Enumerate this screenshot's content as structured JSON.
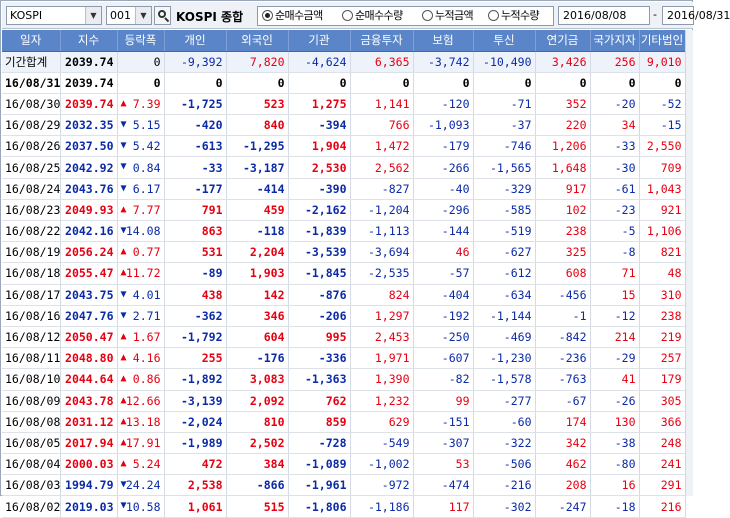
{
  "toolbar": {
    "market_select": "KOSPI",
    "code_select": "001",
    "stock_name": "KOSPI 종합",
    "radios": [
      {
        "label": "순매수금액",
        "checked": true
      },
      {
        "label": "순매수수량",
        "checked": false
      },
      {
        "label": "누적금액",
        "checked": false
      },
      {
        "label": "누적수량",
        "checked": false
      }
    ],
    "date_from": "2016/08/08",
    "date_sep": "-",
    "date_to": "2016/08/31"
  },
  "colors": {
    "up": "#e60012",
    "down": "#0a2aa8",
    "header": "#5a86c9"
  },
  "icons": {
    "search": "search-icon",
    "dropdown": "chevron-down-icon",
    "up": "triangle-up-icon",
    "down": "triangle-down-icon"
  },
  "columns": [
    "일자",
    "지수",
    "등락폭",
    "개인",
    "외국인",
    "기관",
    "금융투자",
    "보험",
    "투신",
    "연기금",
    "국가지자",
    "기타법인"
  ],
  "rows": [
    {
      "date": "기간합계",
      "index": "2039.74",
      "dir": "",
      "chg": "0",
      "vals": [
        "-9,392",
        "7,820",
        "-4,624",
        "6,365",
        "-3,742",
        "-10,490",
        "3,426",
        "256",
        "9,010"
      ]
    },
    {
      "date": "16/08/31",
      "index": "2039.74",
      "dir": "",
      "chg": "0",
      "vals": [
        "0",
        "0",
        "0",
        "0",
        "0",
        "0",
        "0",
        "0",
        "0"
      ]
    },
    {
      "date": "16/08/30",
      "index": "2039.74",
      "dir": "up",
      "chg": "7.39",
      "vals": [
        "-1,725",
        "523",
        "1,275",
        "1,141",
        "-120",
        "-71",
        "352",
        "-20",
        "-52"
      ]
    },
    {
      "date": "16/08/29",
      "index": "2032.35",
      "dir": "down",
      "chg": "5.15",
      "vals": [
        "-420",
        "840",
        "-394",
        "766",
        "-1,093",
        "-37",
        "220",
        "34",
        "-15"
      ]
    },
    {
      "date": "16/08/26",
      "index": "2037.50",
      "dir": "down",
      "chg": "5.42",
      "vals": [
        "-613",
        "-1,295",
        "1,904",
        "1,472",
        "-179",
        "-746",
        "1,206",
        "-33",
        "2,550"
      ]
    },
    {
      "date": "16/08/25",
      "index": "2042.92",
      "dir": "down",
      "chg": "0.84",
      "vals": [
        "-33",
        "-3,187",
        "2,530",
        "2,562",
        "-266",
        "-1,565",
        "1,648",
        "-30",
        "709"
      ]
    },
    {
      "date": "16/08/24",
      "index": "2043.76",
      "dir": "down",
      "chg": "6.17",
      "vals": [
        "-177",
        "-414",
        "-390",
        "-827",
        "-40",
        "-329",
        "917",
        "-61",
        "1,043"
      ]
    },
    {
      "date": "16/08/23",
      "index": "2049.93",
      "dir": "up",
      "chg": "7.77",
      "vals": [
        "791",
        "459",
        "-2,162",
        "-1,204",
        "-296",
        "-585",
        "102",
        "-23",
        "921"
      ]
    },
    {
      "date": "16/08/22",
      "index": "2042.16",
      "dir": "down",
      "chg": "14.08",
      "vals": [
        "863",
        "-118",
        "-1,839",
        "-1,113",
        "-144",
        "-519",
        "238",
        "-5",
        "1,106"
      ]
    },
    {
      "date": "16/08/19",
      "index": "2056.24",
      "dir": "up",
      "chg": "0.77",
      "vals": [
        "531",
        "2,204",
        "-3,539",
        "-3,694",
        "46",
        "-627",
        "325",
        "-8",
        "821"
      ]
    },
    {
      "date": "16/08/18",
      "index": "2055.47",
      "dir": "up",
      "chg": "11.72",
      "vals": [
        "-89",
        "1,903",
        "-1,845",
        "-2,535",
        "-57",
        "-612",
        "608",
        "71",
        "48"
      ]
    },
    {
      "date": "16/08/17",
      "index": "2043.75",
      "dir": "down",
      "chg": "4.01",
      "vals": [
        "438",
        "142",
        "-876",
        "824",
        "-404",
        "-634",
        "-456",
        "15",
        "310"
      ]
    },
    {
      "date": "16/08/16",
      "index": "2047.76",
      "dir": "down",
      "chg": "2.71",
      "vals": [
        "-362",
        "346",
        "-206",
        "1,297",
        "-192",
        "-1,144",
        "-1",
        "-12",
        "238"
      ]
    },
    {
      "date": "16/08/12",
      "index": "2050.47",
      "dir": "up",
      "chg": "1.67",
      "vals": [
        "-1,792",
        "604",
        "995",
        "2,453",
        "-250",
        "-469",
        "-842",
        "214",
        "219"
      ]
    },
    {
      "date": "16/08/11",
      "index": "2048.80",
      "dir": "up",
      "chg": "4.16",
      "vals": [
        "255",
        "-176",
        "-336",
        "1,971",
        "-607",
        "-1,230",
        "-236",
        "-29",
        "257"
      ]
    },
    {
      "date": "16/08/10",
      "index": "2044.64",
      "dir": "up",
      "chg": "0.86",
      "vals": [
        "-1,892",
        "3,083",
        "-1,363",
        "1,390",
        "-82",
        "-1,578",
        "-763",
        "41",
        "179"
      ]
    },
    {
      "date": "16/08/09",
      "index": "2043.78",
      "dir": "up",
      "chg": "12.66",
      "vals": [
        "-3,139",
        "2,092",
        "762",
        "1,232",
        "99",
        "-277",
        "-67",
        "-26",
        "305"
      ]
    },
    {
      "date": "16/08/08",
      "index": "2031.12",
      "dir": "up",
      "chg": "13.18",
      "vals": [
        "-2,024",
        "810",
        "859",
        "629",
        "-151",
        "-60",
        "174",
        "130",
        "366"
      ]
    },
    {
      "date": "16/08/05",
      "index": "2017.94",
      "dir": "up",
      "chg": "17.91",
      "vals": [
        "-1,989",
        "2,502",
        "-728",
        "-549",
        "-307",
        "-322",
        "342",
        "-38",
        "248"
      ]
    },
    {
      "date": "16/08/04",
      "index": "2000.03",
      "dir": "up",
      "chg": "5.24",
      "vals": [
        "472",
        "384",
        "-1,089",
        "-1,002",
        "53",
        "-506",
        "462",
        "-80",
        "241"
      ]
    },
    {
      "date": "16/08/03",
      "index": "1994.79",
      "dir": "down",
      "chg": "24.24",
      "vals": [
        "2,538",
        "-866",
        "-1,961",
        "-972",
        "-474",
        "-216",
        "208",
        "16",
        "291"
      ]
    },
    {
      "date": "16/08/02",
      "index": "2019.03",
      "dir": "down",
      "chg": "10.58",
      "vals": [
        "1,061",
        "515",
        "-1,806",
        "-1,186",
        "117",
        "-302",
        "-247",
        "-18",
        "216"
      ]
    }
  ]
}
